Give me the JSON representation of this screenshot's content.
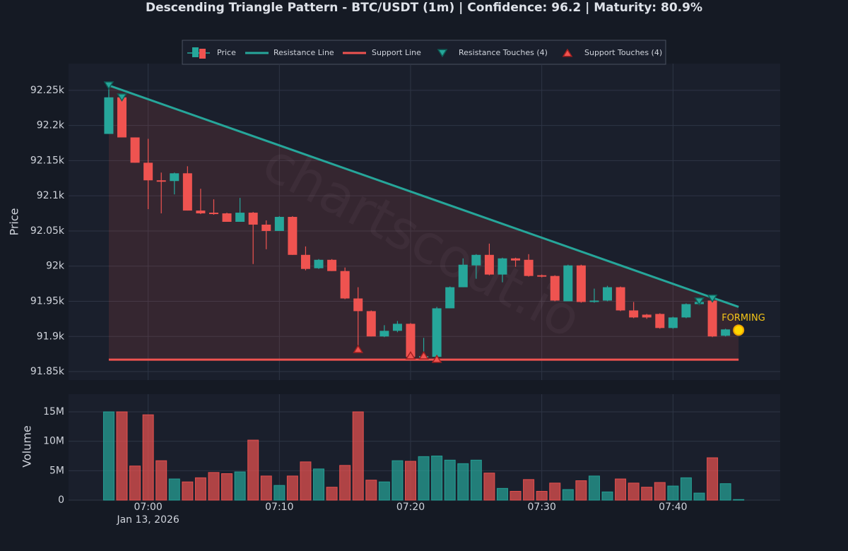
{
  "chart_data": [
    {
      "type": "candlestick",
      "title": "Descending Triangle Pattern - BTC/USDT (1m) | Confidence: 96.2 | Maturity: 80.9%",
      "name": "Price",
      "ylabel": "Price",
      "x": [
        "2026-01-13T06:57",
        "2026-01-13T06:58",
        "2026-01-13T06:59",
        "2026-01-13T07:00",
        "2026-01-13T07:01",
        "2026-01-13T07:02",
        "2026-01-13T07:03",
        "2026-01-13T07:04",
        "2026-01-13T07:05",
        "2026-01-13T07:06",
        "2026-01-13T07:07",
        "2026-01-13T07:08",
        "2026-01-13T07:09",
        "2026-01-13T07:10",
        "2026-01-13T07:11",
        "2026-01-13T07:12",
        "2026-01-13T07:13",
        "2026-01-13T07:14",
        "2026-01-13T07:15",
        "2026-01-13T07:16",
        "2026-01-13T07:17",
        "2026-01-13T07:18",
        "2026-01-13T07:19",
        "2026-01-13T07:20",
        "2026-01-13T07:21",
        "2026-01-13T07:22",
        "2026-01-13T07:23",
        "2026-01-13T07:24",
        "2026-01-13T07:25",
        "2026-01-13T07:26",
        "2026-01-13T07:27",
        "2026-01-13T07:28",
        "2026-01-13T07:29",
        "2026-01-13T07:30",
        "2026-01-13T07:31",
        "2026-01-13T07:32",
        "2026-01-13T07:33",
        "2026-01-13T07:34",
        "2026-01-13T07:35",
        "2026-01-13T07:36",
        "2026-01-13T07:37",
        "2026-01-13T07:38",
        "2026-01-13T07:39",
        "2026-01-13T07:40",
        "2026-01-13T07:41",
        "2026-01-13T07:42",
        "2026-01-13T07:43",
        "2026-01-13T07:44",
        "2026-01-13T07:45"
      ],
      "open": [
        92188,
        92240,
        92183,
        92147,
        92122,
        92121,
        92132,
        92079,
        92076,
        92075,
        92063,
        92076,
        92059,
        92050,
        92070,
        92016,
        91997,
        92009,
        91993,
        91954,
        91936,
        91900,
        91908,
        91918,
        91870,
        91871,
        91940,
        91970,
        92001,
        92016,
        91988,
        92011,
        92009,
        91987,
        91986,
        91950,
        92001,
        91949,
        91951,
        91970,
        91937,
        91931,
        91932,
        91912,
        91927,
        91946,
        91951,
        91901,
        91910
      ],
      "high": [
        92257,
        92245,
        92183,
        92181,
        92133,
        92133,
        92142,
        92110,
        92095,
        92076,
        92097,
        92077,
        92065,
        92071,
        92071,
        92028,
        92010,
        92010,
        91998,
        91970,
        91937,
        91916,
        91922,
        91919,
        91898,
        91942,
        91971,
        92011,
        92017,
        92032,
        92012,
        92012,
        92017,
        91988,
        91987,
        92002,
        92002,
        91968,
        91972,
        91971,
        91949,
        91932,
        91933,
        91928,
        91947,
        91950,
        91954,
        91911,
        91910
      ],
      "low": [
        92188,
        92183,
        92147,
        92081,
        92075,
        92102,
        92079,
        92074,
        92073,
        92063,
        92063,
        92003,
        92024,
        92050,
        92016,
        91994,
        91996,
        91993,
        91953,
        91880,
        91900,
        91899,
        91906,
        91868,
        91868,
        91866,
        91940,
        91970,
        91982,
        91987,
        91977,
        91999,
        91985,
        91984,
        91950,
        91950,
        91948,
        91948,
        91950,
        91936,
        91926,
        91925,
        91911,
        91911,
        91926,
        91945,
        91899,
        91900,
        91910
      ],
      "close": [
        92240,
        92183,
        92147,
        92122,
        92120,
        92132,
        92079,
        92075,
        92074,
        92063,
        92076,
        92059,
        92050,
        92070,
        92016,
        91996,
        92009,
        91993,
        91954,
        91936,
        91900,
        91908,
        91918,
        91871,
        91872,
        91940,
        91970,
        92002,
        92016,
        91988,
        92011,
        92008,
        91986,
        91985,
        91951,
        92001,
        91949,
        91951,
        91970,
        91937,
        91927,
        91927,
        91912,
        91927,
        91946,
        91949,
        91900,
        91910,
        91910
      ],
      "up_color": "#26a69a",
      "down_color": "#ef5350",
      "series": [
        {
          "name": "Resistance Line",
          "type": "line",
          "color": "#26a69a",
          "x": [
            "2026-01-13T06:57",
            "2026-01-13T07:45"
          ],
          "values": [
            92257,
            91942
          ]
        },
        {
          "name": "Support Line",
          "type": "line",
          "color": "#ef5350",
          "x": [
            "2026-01-13T06:57",
            "2026-01-13T07:45"
          ],
          "values": [
            91867,
            91867
          ]
        },
        {
          "name": "Resistance Touches (4)",
          "type": "scatter",
          "marker": "triangle-down",
          "color": "#26a69a",
          "x": [
            "2026-01-13T06:57",
            "2026-01-13T06:58",
            "2026-01-13T07:42",
            "2026-01-13T07:43"
          ],
          "values": [
            92257,
            92240,
            91950,
            91954
          ]
        },
        {
          "name": "Support Touches (4)",
          "type": "scatter",
          "marker": "triangle-up",
          "color": "#ef5350",
          "x": [
            "2026-01-13T07:16",
            "2026-01-13T07:20",
            "2026-01-13T07:21",
            "2026-01-13T07:22"
          ],
          "values": [
            91882,
            91873,
            91873,
            91868
          ]
        }
      ],
      "annotations": [
        {
          "text": "FORMING",
          "x": "2026-01-13T07:45",
          "y": 91909,
          "color": "#f5c518"
        }
      ],
      "watermark": "chartscout.io",
      "xlim": [
        "2026-01-13T06:53:56",
        "2026-01-13T07:48:10"
      ],
      "xticks": [
        "2026-01-13T07:00",
        "2026-01-13T07:10",
        "2026-01-13T07:20",
        "2026-01-13T07:30",
        "2026-01-13T07:40"
      ],
      "ylim": [
        91838,
        92288
      ],
      "yticks": [
        {
          "value": 91850,
          "label": "91.85k"
        },
        {
          "value": 91900,
          "label": "91.9k"
        },
        {
          "value": 91950,
          "label": "91.95k"
        },
        {
          "value": 92000,
          "label": "92k"
        },
        {
          "value": 92050,
          "label": "92.05k"
        },
        {
          "value": 92100,
          "label": "92.1k"
        },
        {
          "value": 92150,
          "label": "92.15k"
        },
        {
          "value": 92200,
          "label": "92.2k"
        },
        {
          "value": 92250,
          "label": "92.25k"
        }
      ],
      "grid": true,
      "legend": "top"
    },
    {
      "type": "bar",
      "ylabel": "Volume",
      "x": [
        "2026-01-13T06:57",
        "2026-01-13T06:58",
        "2026-01-13T06:59",
        "2026-01-13T07:00",
        "2026-01-13T07:01",
        "2026-01-13T07:02",
        "2026-01-13T07:03",
        "2026-01-13T07:04",
        "2026-01-13T07:05",
        "2026-01-13T07:06",
        "2026-01-13T07:07",
        "2026-01-13T07:08",
        "2026-01-13T07:09",
        "2026-01-13T07:10",
        "2026-01-13T07:11",
        "2026-01-13T07:12",
        "2026-01-13T07:13",
        "2026-01-13T07:14",
        "2026-01-13T07:15",
        "2026-01-13T07:16",
        "2026-01-13T07:17",
        "2026-01-13T07:18",
        "2026-01-13T07:19",
        "2026-01-13T07:20",
        "2026-01-13T07:21",
        "2026-01-13T07:22",
        "2026-01-13T07:23",
        "2026-01-13T07:24",
        "2026-01-13T07:25",
        "2026-01-13T07:26",
        "2026-01-13T07:27",
        "2026-01-13T07:28",
        "2026-01-13T07:29",
        "2026-01-13T07:30",
        "2026-01-13T07:31",
        "2026-01-13T07:32",
        "2026-01-13T07:33",
        "2026-01-13T07:34",
        "2026-01-13T07:35",
        "2026-01-13T07:36",
        "2026-01-13T07:37",
        "2026-01-13T07:38",
        "2026-01-13T07:39",
        "2026-01-13T07:40",
        "2026-01-13T07:41",
        "2026-01-13T07:42",
        "2026-01-13T07:43",
        "2026-01-13T07:44",
        "2026-01-13T07:45"
      ],
      "values": [
        15000000,
        15000000,
        5800000,
        14500000,
        6700000,
        3600000,
        3100000,
        3800000,
        4700000,
        4500000,
        4800000,
        10200000,
        4100000,
        2500000,
        4100000,
        6500000,
        5300000,
        2200000,
        5900000,
        15000000,
        3400000,
        3100000,
        6700000,
        6600000,
        7400000,
        7500000,
        6800000,
        6200000,
        6800000,
        4600000,
        2000000,
        1500000,
        3500000,
        1500000,
        2900000,
        1800000,
        3300000,
        4100000,
        1400000,
        3600000,
        2900000,
        2200000,
        3000000,
        2400000,
        3800000,
        1200000,
        7200000,
        2800000,
        100000
      ],
      "xlim": [
        "2026-01-13T06:53:56",
        "2026-01-13T07:48:10"
      ],
      "xticks": [
        {
          "value": "2026-01-13T07:00",
          "label": "07:00"
        },
        {
          "value": "2026-01-13T07:10",
          "label": "07:10"
        },
        {
          "value": "2026-01-13T07:20",
          "label": "07:20"
        },
        {
          "value": "2026-01-13T07:30",
          "label": "07:30"
        },
        {
          "value": "2026-01-13T07:40",
          "label": "07:40"
        }
      ],
      "x_date_label": "Jan 13, 2026",
      "ylim": [
        0,
        18000000
      ],
      "yticks": [
        0,
        {
          "value": 5000000,
          "label": "5M"
        },
        {
          "value": 10000000,
          "label": "10M"
        },
        {
          "value": 15000000,
          "label": "15M"
        }
      ],
      "grid": true
    }
  ]
}
